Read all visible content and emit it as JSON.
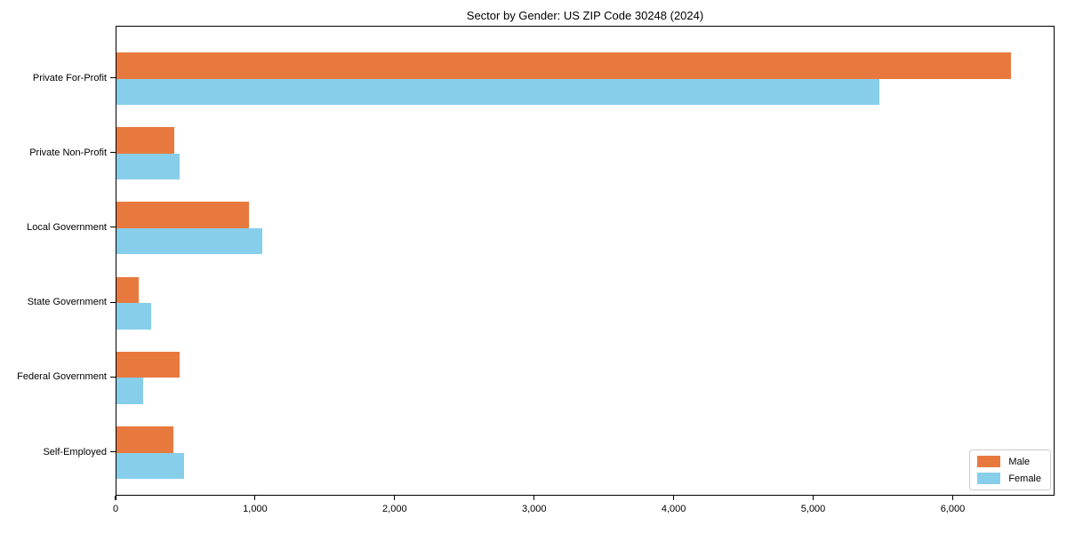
{
  "title": "Sector by Gender: US ZIP Code 30248 (2024)",
  "chart_data": {
    "type": "bar",
    "orientation": "horizontal",
    "title": "Sector by Gender: US ZIP Code 30248 (2024)",
    "categories": [
      "Private For-Profit",
      "Private Non-Profit",
      "Local Government",
      "State Government",
      "Federal Government",
      "Self-Employed"
    ],
    "series": [
      {
        "name": "Male",
        "color": "#e8793e",
        "values": [
          6410,
          415,
          950,
          160,
          450,
          410
        ]
      },
      {
        "name": "Female",
        "color": "#87ceeb",
        "values": [
          5470,
          450,
          1045,
          250,
          190,
          485
        ]
      }
    ],
    "xlabel": "",
    "ylabel": "",
    "xlim": [
      0,
      6730
    ],
    "xticks": [
      0,
      1000,
      2000,
      3000,
      4000,
      5000,
      6000
    ],
    "xtick_labels": [
      "0",
      "1,000",
      "2,000",
      "3,000",
      "4,000",
      "5,000",
      "6,000"
    ],
    "grid": false,
    "legend": {
      "position": "lower right"
    }
  }
}
